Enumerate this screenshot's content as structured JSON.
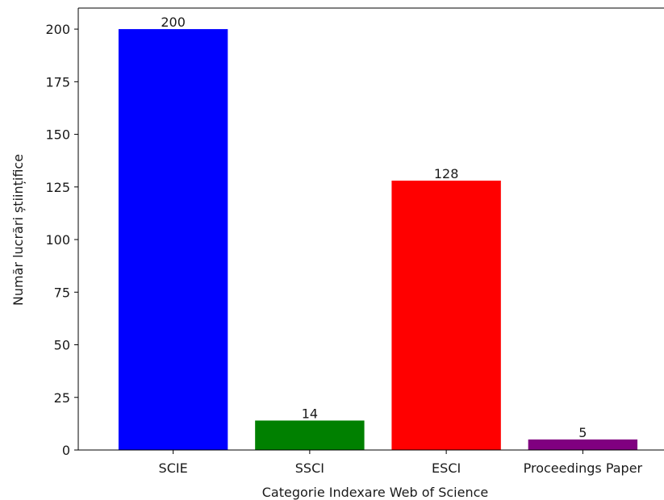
{
  "chart_data": {
    "type": "bar",
    "title": "",
    "xlabel": "Categorie Indexare Web of Science",
    "ylabel": "Număr lucrări științifice",
    "categories": [
      "SCIE",
      "SSCI",
      "ESCI",
      "Proceedings Paper"
    ],
    "values": [
      200,
      14,
      128,
      5
    ],
    "colors": [
      "#0000ff",
      "#008000",
      "#ff0000",
      "#800080"
    ],
    "data_labels": [
      "200",
      "14",
      "128",
      "5"
    ],
    "ylim": [
      0,
      210
    ],
    "yticks": [
      0,
      25,
      50,
      75,
      100,
      125,
      150,
      175,
      200
    ],
    "grid": false,
    "legend": "none"
  }
}
